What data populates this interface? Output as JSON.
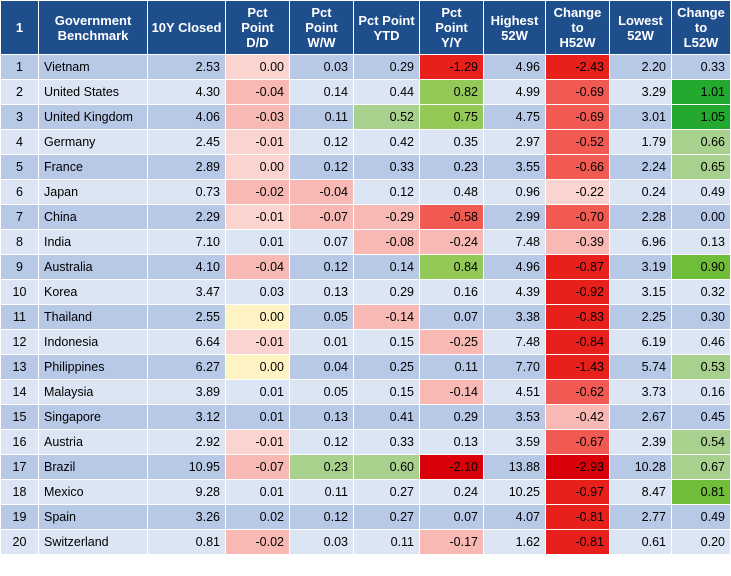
{
  "headers": [
    {
      "key": "idx",
      "label": "1"
    },
    {
      "key": "name",
      "label": "Government\nBenchmark"
    },
    {
      "key": "closed",
      "label": "10Y Closed"
    },
    {
      "key": "dd",
      "label": "Pct\nPoint\nD/D"
    },
    {
      "key": "ww",
      "label": "Pct\nPoint\nW/W"
    },
    {
      "key": "ytd",
      "label": "Pct Point\nYTD"
    },
    {
      "key": "yy",
      "label": "Pct\nPoint\nY/Y"
    },
    {
      "key": "h52",
      "label": "Highest\n52W"
    },
    {
      "key": "ch52",
      "label": "Change\nto\nH52W"
    },
    {
      "key": "l52",
      "label": "Lowest\n52W"
    },
    {
      "key": "cl52",
      "label": "Change\nto\nL52W"
    }
  ],
  "rows": [
    {
      "idx": "1",
      "name": "Vietnam",
      "closed": "2.53",
      "dd": "0.00",
      "ww": "0.03",
      "ytd": "0.29",
      "yy": "-1.29",
      "h52": "4.96",
      "ch52": "-2.43",
      "l52": "2.20",
      "cl52": "0.33"
    },
    {
      "idx": "2",
      "name": "United States",
      "closed": "4.30",
      "dd": "-0.04",
      "ww": "0.14",
      "ytd": "0.44",
      "yy": "0.82",
      "h52": "4.99",
      "ch52": "-0.69",
      "l52": "3.29",
      "cl52": "1.01"
    },
    {
      "idx": "3",
      "name": "United Kingdom",
      "closed": "4.06",
      "dd": "-0.03",
      "ww": "0.11",
      "ytd": "0.52",
      "yy": "0.75",
      "h52": "4.75",
      "ch52": "-0.69",
      "l52": "3.01",
      "cl52": "1.05"
    },
    {
      "idx": "4",
      "name": "Germany",
      "closed": "2.45",
      "dd": "-0.01",
      "ww": "0.12",
      "ytd": "0.42",
      "yy": "0.35",
      "h52": "2.97",
      "ch52": "-0.52",
      "l52": "1.79",
      "cl52": "0.66"
    },
    {
      "idx": "5",
      "name": "France",
      "closed": "2.89",
      "dd": "0.00",
      "ww": "0.12",
      "ytd": "0.33",
      "yy": "0.23",
      "h52": "3.55",
      "ch52": "-0.66",
      "l52": "2.24",
      "cl52": "0.65"
    },
    {
      "idx": "6",
      "name": "Japan",
      "closed": "0.73",
      "dd": "-0.02",
      "ww": "-0.04",
      "ytd": "0.12",
      "yy": "0.48",
      "h52": "0.96",
      "ch52": "-0.22",
      "l52": "0.24",
      "cl52": "0.49"
    },
    {
      "idx": "7",
      "name": "China",
      "closed": "2.29",
      "dd": "-0.01",
      "ww": "-0.07",
      "ytd": "-0.29",
      "yy": "-0.58",
      "h52": "2.99",
      "ch52": "-0.70",
      "l52": "2.28",
      "cl52": "0.00"
    },
    {
      "idx": "8",
      "name": "India",
      "closed": "7.10",
      "dd": "0.01",
      "ww": "0.07",
      "ytd": "-0.08",
      "yy": "-0.24",
      "h52": "7.48",
      "ch52": "-0.39",
      "l52": "6.96",
      "cl52": "0.13"
    },
    {
      "idx": "9",
      "name": "Australia",
      "closed": "4.10",
      "dd": "-0.04",
      "ww": "0.12",
      "ytd": "0.14",
      "yy": "0.84",
      "h52": "4.96",
      "ch52": "-0.87",
      "l52": "3.19",
      "cl52": "0.90"
    },
    {
      "idx": "10",
      "name": "Korea",
      "closed": "3.47",
      "dd": "0.03",
      "ww": "0.13",
      "ytd": "0.29",
      "yy": "0.16",
      "h52": "4.39",
      "ch52": "-0.92",
      "l52": "3.15",
      "cl52": "0.32"
    },
    {
      "idx": "11",
      "name": "Thailand",
      "closed": "2.55",
      "dd": "0.00",
      "ww": "0.05",
      "ytd": "-0.14",
      "yy": "0.07",
      "h52": "3.38",
      "ch52": "-0.83",
      "l52": "2.25",
      "cl52": "0.30"
    },
    {
      "idx": "12",
      "name": "Indonesia",
      "closed": "6.64",
      "dd": "-0.01",
      "ww": "0.01",
      "ytd": "0.15",
      "yy": "-0.25",
      "h52": "7.48",
      "ch52": "-0.84",
      "l52": "6.19",
      "cl52": "0.46"
    },
    {
      "idx": "13",
      "name": "Philippines",
      "closed": "6.27",
      "dd": "0.00",
      "ww": "0.04",
      "ytd": "0.25",
      "yy": "0.11",
      "h52": "7.70",
      "ch52": "-1.43",
      "l52": "5.74",
      "cl52": "0.53"
    },
    {
      "idx": "14",
      "name": "Malaysia",
      "closed": "3.89",
      "dd": "0.01",
      "ww": "0.05",
      "ytd": "0.15",
      "yy": "-0.14",
      "h52": "4.51",
      "ch52": "-0.62",
      "l52": "3.73",
      "cl52": "0.16"
    },
    {
      "idx": "15",
      "name": "Singapore",
      "closed": "3.12",
      "dd": "0.01",
      "ww": "0.13",
      "ytd": "0.41",
      "yy": "0.29",
      "h52": "3.53",
      "ch52": "-0.42",
      "l52": "2.67",
      "cl52": "0.45"
    },
    {
      "idx": "16",
      "name": "Austria",
      "closed": "2.92",
      "dd": "-0.01",
      "ww": "0.12",
      "ytd": "0.33",
      "yy": "0.13",
      "h52": "3.59",
      "ch52": "-0.67",
      "l52": "2.39",
      "cl52": "0.54"
    },
    {
      "idx": "17",
      "name": "Brazil",
      "closed": "10.95",
      "dd": "-0.07",
      "ww": "0.23",
      "ytd": "0.60",
      "yy": "-2.10",
      "h52": "13.88",
      "ch52": "-2.93",
      "l52": "10.28",
      "cl52": "0.67"
    },
    {
      "idx": "18",
      "name": "Mexico",
      "closed": "9.28",
      "dd": "0.01",
      "ww": "0.11",
      "ytd": "0.27",
      "yy": "0.24",
      "h52": "10.25",
      "ch52": "-0.97",
      "l52": "8.47",
      "cl52": "0.81"
    },
    {
      "idx": "19",
      "name": "Spain",
      "closed": "3.26",
      "dd": "0.02",
      "ww": "0.12",
      "ytd": "0.27",
      "yy": "0.07",
      "h52": "4.07",
      "ch52": "-0.81",
      "l52": "2.77",
      "cl52": "0.49"
    },
    {
      "idx": "20",
      "name": "Switzerland",
      "closed": "0.81",
      "dd": "-0.02",
      "ww": "0.03",
      "ytd": "0.11",
      "yy": "-0.17",
      "h52": "1.62",
      "ch52": "-0.81",
      "l52": "0.61",
      "cl52": "0.20"
    }
  ],
  "cell_colors": {
    "1": {
      "dd": "#fbd3cf",
      "yy": "#e8201c",
      "ch52": "#e8201c"
    },
    "2": {
      "dd": "#f8b9b4",
      "yy": "#92c957",
      "ch52": "#f05a53",
      "cl52": "#22a92e"
    },
    "3": {
      "dd": "#f8b9b4",
      "ytd": "#a9d18e",
      "yy": "#92c957",
      "ch52": "#f05a53",
      "cl52": "#22a92e"
    },
    "4": {
      "dd": "#fbd3cf",
      "ch52": "#f05a53",
      "cl52": "#a9d18e"
    },
    "5": {
      "dd": "#fbd3cf",
      "ch52": "#f05a53",
      "cl52": "#a9d18e"
    },
    "6": {
      "dd": "#f8b9b4",
      "ww": "#f8b9b4",
      "ch52": "#fbd3cf"
    },
    "7": {
      "dd": "#fbd3cf",
      "ww": "#f8b9b4",
      "ytd": "#f8b9b4",
      "yy": "#f05a53",
      "ch52": "#f05a53"
    },
    "8": {
      "ytd": "#f8b9b4",
      "yy": "#f8b9b4",
      "ch52": "#f8b9b4"
    },
    "9": {
      "dd": "#f8b9b4",
      "yy": "#92c957",
      "ch52": "#e8201c",
      "cl52": "#70bd3a"
    },
    "10": {
      "ch52": "#e8201c"
    },
    "11": {
      "dd": "#fff3c4",
      "ytd": "#f8b9b4",
      "ch52": "#e8201c"
    },
    "12": {
      "dd": "#fbd3cf",
      "yy": "#f8b9b4",
      "ch52": "#e8201c"
    },
    "13": {
      "dd": "#fff3c4",
      "ch52": "#e8201c",
      "cl52": "#a9d18e"
    },
    "14": {
      "yy": "#f8b9b4",
      "ch52": "#f05a53"
    },
    "15": {
      "ch52": "#f8b9b4"
    },
    "16": {
      "dd": "#fbd3cf",
      "ch52": "#f05a53",
      "cl52": "#a9d18e"
    },
    "17": {
      "dd": "#f8b9b4",
      "ww": "#a9d18e",
      "ytd": "#a9d18e",
      "yy": "#d9000a",
      "ch52": "#d9000a",
      "cl52": "#a9d18e"
    },
    "18": {
      "ch52": "#e8201c",
      "cl52": "#70bd3a"
    },
    "19": {
      "ch52": "#e8201c"
    },
    "20": {
      "dd": "#f8b9b4",
      "yy": "#f8b9b4",
      "ch52": "#e8201c"
    }
  },
  "colors": {
    "header_bg": "#1f4e8c",
    "row_odd": "#b8c9e8",
    "row_even": "#dbe5f4"
  }
}
